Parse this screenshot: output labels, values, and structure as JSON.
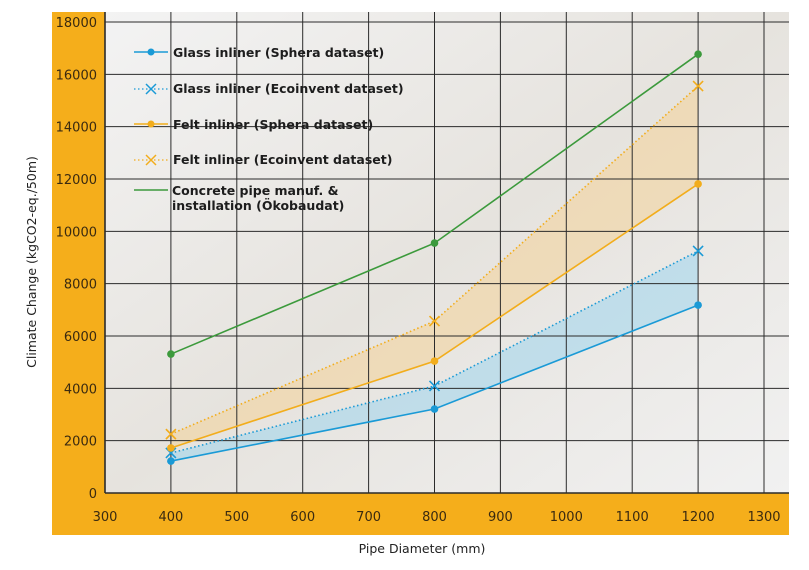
{
  "chart_data": {
    "type": "line",
    "title": "",
    "xlabel": "Pipe Diameter (mm)",
    "ylabel": "Climate Change (kgCO2-eq./50m)",
    "xlim": [
      300,
      1300
    ],
    "ylim": [
      0,
      18000
    ],
    "x_ticks": [
      300,
      400,
      500,
      600,
      700,
      800,
      900,
      1000,
      1100,
      1200,
      1300
    ],
    "y_ticks": [
      0,
      2000,
      4000,
      6000,
      8000,
      10000,
      12000,
      14000,
      16000,
      18000
    ],
    "grid": true,
    "legend_position": "upper left",
    "x": [
      400,
      800,
      1200
    ],
    "series": [
      {
        "name": "Glass inliner (Sphera dataset)",
        "values": [
          1220,
          3210,
          7180
        ],
        "color": "#1a9ad6",
        "style": "solid",
        "marker": "circle"
      },
      {
        "name": "Glass inliner (Ecoinvent dataset)",
        "values": [
          1530,
          4090,
          9250
        ],
        "color": "#1a9ad6",
        "style": "dotted",
        "marker": "x"
      },
      {
        "name": "Felt inliner (Sphera dataset)",
        "values": [
          1720,
          5040,
          11810
        ],
        "color": "#f2ad1c",
        "style": "solid",
        "marker": "circle"
      },
      {
        "name": "Felt inliner (Ecoinvent dataset)",
        "values": [
          2250,
          6570,
          15550
        ],
        "color": "#f2ad1c",
        "style": "dotted",
        "marker": "x"
      },
      {
        "name": "Concrete pipe manuf. & installation (Ökobaudat)",
        "values": [
          5310,
          9550,
          16770
        ],
        "color": "#3c9a3c",
        "style": "solid",
        "marker": "circle"
      }
    ],
    "shaded_bands": [
      {
        "between": [
          "Glass inliner (Sphera dataset)",
          "Glass inliner (Ecoinvent dataset)"
        ],
        "color": "#8fd0f0"
      },
      {
        "between": [
          "Felt inliner (Sphera dataset)",
          "Felt inliner (Ecoinvent dataset)"
        ],
        "color": "#f6cf8a"
      }
    ]
  },
  "legend": {
    "items": [
      {
        "label": "Glass inliner (Sphera dataset)"
      },
      {
        "label": "Glass inliner (Ecoinvent dataset)"
      },
      {
        "label": "Felt inliner (Sphera dataset)"
      },
      {
        "label": "Felt inliner (Ecoinvent dataset)"
      },
      {
        "label_line1": "Concrete pipe manuf. &",
        "label_line2": "installation (Ökobaudat)"
      }
    ]
  },
  "colors": {
    "frame": "#f5ae1b",
    "plot_bg": "#ececec",
    "grid": "#2b2b2b"
  }
}
